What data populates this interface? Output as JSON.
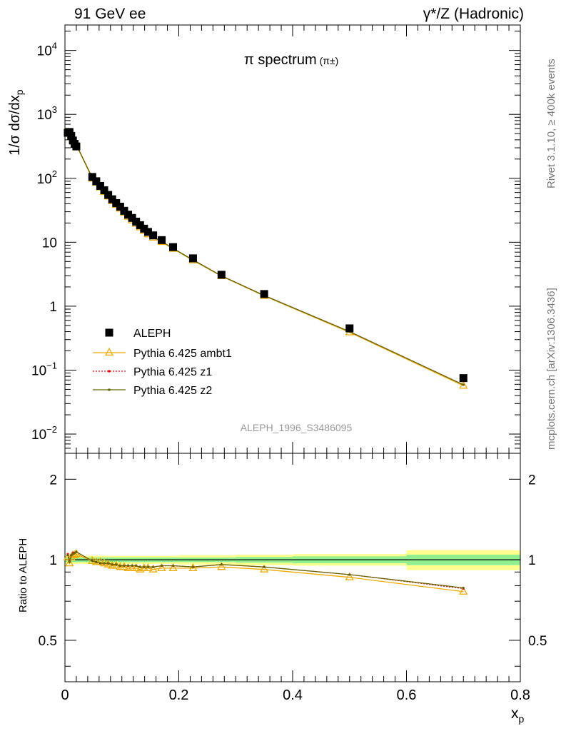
{
  "header": {
    "top_left": "91 GeV ee",
    "top_right": "γ*/Z (Hadronic)"
  },
  "side_text": {
    "rivet": "Rivet 3.1.10, ≥ 400k events",
    "mcplots": "mcplots.cern.ch [arXiv:1306.3436]"
  },
  "watermark": "ALEPH_1996_S3486095",
  "chart_data": {
    "type": "scatter",
    "title": "π spectrum",
    "title_suffix": "(π±)",
    "ylabel": "1/σ dσ/dx_p",
    "xlabel": "x_p",
    "ratio_ylabel": "Ratio to ALEPH",
    "xlim": [
      0,
      0.8
    ],
    "ylim": [
      0.005,
      25000
    ],
    "yscale": "log",
    "ratio_ylim": [
      0.35,
      2.5
    ],
    "ratio_yscale": "log",
    "x_ticks": [
      "0",
      "0.2",
      "0.4",
      "0.6",
      "0.8"
    ],
    "y_tick_labels": [
      {
        "value": 0.01,
        "base": "10",
        "exp": "−2"
      },
      {
        "value": 0.1,
        "base": "10",
        "exp": "−1"
      },
      {
        "value": 1,
        "base": "1",
        "exp": ""
      },
      {
        "value": 10,
        "base": "10",
        "exp": ""
      },
      {
        "value": 100,
        "base": "10",
        "exp": "2"
      },
      {
        "value": 1000,
        "base": "10",
        "exp": "3"
      },
      {
        "value": 10000,
        "base": "10",
        "exp": "4"
      }
    ],
    "ratio_y_ticks": [
      "0.5",
      "1",
      "2"
    ],
    "legend_position": "middle-left",
    "colors": {
      "data": "#000000",
      "ambt1": "#eeaa00",
      "z1": "#ee0000",
      "z2": "#666600",
      "band_inner": "#90f090",
      "band_outer": "#ffff90"
    },
    "x": [
      0.005,
      0.008,
      0.011,
      0.014,
      0.017,
      0.02,
      0.048,
      0.055,
      0.062,
      0.069,
      0.076,
      0.083,
      0.09,
      0.097,
      0.104,
      0.111,
      0.118,
      0.125,
      0.132,
      0.139,
      0.146,
      0.155,
      0.17,
      0.19,
      0.225,
      0.275,
      0.35,
      0.5,
      0.7
    ],
    "series": [
      {
        "name": "ALEPH",
        "key": "data",
        "values": [
          515,
          530,
          460,
          390,
          345,
          315,
          105,
          90,
          76,
          65,
          55,
          47,
          41,
          36,
          31,
          27,
          24,
          21,
          18.5,
          16.3,
          14.5,
          12.8,
          10.8,
          8.4,
          5.6,
          3.1,
          1.55,
          0.45,
          0.075
        ],
        "ratio_band_inner": [
          0.03,
          0.03,
          0.03,
          0.03,
          0.03,
          0.03,
          0.02,
          0.02,
          0.02,
          0.02,
          0.02,
          0.02,
          0.02,
          0.02,
          0.02,
          0.02,
          0.02,
          0.02,
          0.02,
          0.02,
          0.02,
          0.02,
          0.02,
          0.02,
          0.02,
          0.025,
          0.025,
          0.04,
          0.05
        ],
        "ratio_band_outer": [
          0.05,
          0.05,
          0.05,
          0.05,
          0.05,
          0.05,
          0.04,
          0.04,
          0.04,
          0.04,
          0.04,
          0.04,
          0.04,
          0.04,
          0.04,
          0.04,
          0.04,
          0.04,
          0.04,
          0.04,
          0.04,
          0.04,
          0.04,
          0.04,
          0.04,
          0.045,
          0.045,
          0.07,
          0.09
        ]
      },
      {
        "name": "Pythia 6.425 ambt1",
        "key": "ambt1",
        "values": [
          525,
          515,
          470,
          405,
          360,
          330,
          99,
          85,
          72,
          61,
          52,
          44,
          38.5,
          33.5,
          29,
          25,
          22,
          19.4,
          17.1,
          15,
          13.3,
          11.8,
          10.1,
          7.9,
          5.2,
          2.95,
          1.45,
          0.39,
          0.057
        ],
        "ratio": [
          1.02,
          0.97,
          1.02,
          1.04,
          1.04,
          1.05,
          0.99,
          0.98,
          0.98,
          0.97,
          0.96,
          0.95,
          0.95,
          0.94,
          0.94,
          0.93,
          0.93,
          0.93,
          0.92,
          0.93,
          0.93,
          0.92,
          0.93,
          0.93,
          0.93,
          0.94,
          0.92,
          0.86,
          0.76
        ]
      },
      {
        "name": "Pythia 6.425 z1",
        "key": "z1",
        "values": [
          540,
          525,
          480,
          412,
          365,
          336,
          102,
          87,
          74,
          63,
          53.5,
          45.4,
          39.6,
          34.6,
          29.8,
          25.8,
          22.7,
          19.9,
          17.5,
          15.4,
          13.7,
          12.1,
          10.3,
          8.0,
          5.3,
          2.98,
          1.47,
          0.4,
          0.059
        ],
        "ratio": [
          1.05,
          0.99,
          1.04,
          1.06,
          1.06,
          1.07,
          0.99,
          0.98,
          0.97,
          0.97,
          0.97,
          0.96,
          0.96,
          0.95,
          0.95,
          0.95,
          0.95,
          0.95,
          0.94,
          0.94,
          0.94,
          0.94,
          0.95,
          0.95,
          0.94,
          0.96,
          0.94,
          0.88,
          0.78
        ]
      },
      {
        "name": "Pythia 6.425 z2",
        "key": "z2",
        "values": [
          538,
          522,
          478,
          410,
          364,
          335,
          102,
          87,
          74,
          63,
          53.5,
          45.4,
          39.6,
          34.6,
          29.8,
          25.8,
          22.7,
          19.9,
          17.5,
          15.4,
          13.7,
          12.1,
          10.3,
          8.0,
          5.3,
          2.98,
          1.47,
          0.4,
          0.059
        ],
        "ratio": [
          1.04,
          0.98,
          1.04,
          1.05,
          1.06,
          1.07,
          0.99,
          0.98,
          0.97,
          0.97,
          0.97,
          0.96,
          0.96,
          0.95,
          0.95,
          0.95,
          0.95,
          0.95,
          0.94,
          0.94,
          0.94,
          0.94,
          0.95,
          0.95,
          0.94,
          0.96,
          0.94,
          0.88,
          0.785
        ]
      }
    ],
    "ratio_band_segments": [
      {
        "x0": 0.0,
        "x1": 0.2,
        "inner": 0.02,
        "outer": 0.035
      },
      {
        "x0": 0.2,
        "x1": 0.3,
        "inner": 0.02,
        "outer": 0.04
      },
      {
        "x0": 0.3,
        "x1": 0.4,
        "inner": 0.025,
        "outer": 0.045
      },
      {
        "x0": 0.4,
        "x1": 0.6,
        "inner": 0.03,
        "outer": 0.05
      },
      {
        "x0": 0.6,
        "x1": 0.8,
        "inner": 0.045,
        "outer": 0.085
      }
    ]
  }
}
